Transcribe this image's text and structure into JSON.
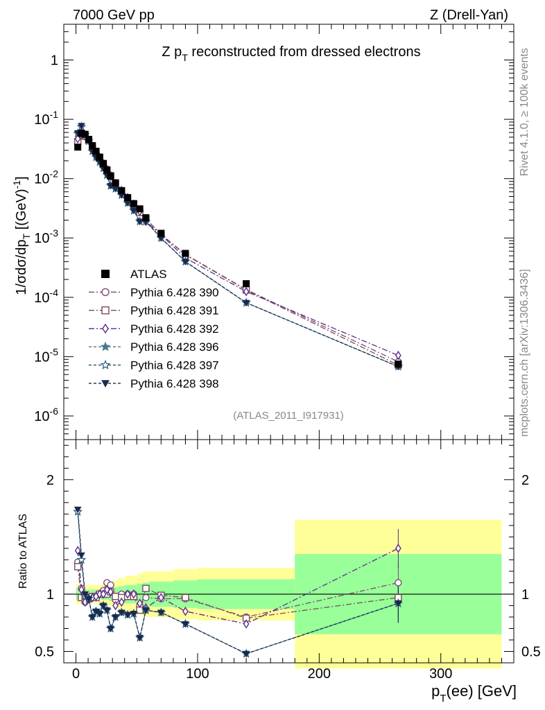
{
  "header": {
    "left": "7000 GeV pp",
    "right": "Z (Drell-Yan)"
  },
  "side_labels": {
    "top": "Rivet 4.1.0, ≥ 100k events",
    "bottom": "mcplots.cern.ch [arXiv:1306.3436]"
  },
  "chart_data": [
    {
      "type": "line",
      "panel": "main",
      "title": "Z p_T reconstructed from dressed electrons",
      "analysis_tag": "(ATLAS_2011_I917931)",
      "xlabel": "p_T(ee) [GeV]",
      "ylabel": "1/σdσ/dp_T [(GeV)^-1]",
      "yscale": "log",
      "xlim": [
        -10,
        360
      ],
      "ylim": [
        4e-07,
        4
      ],
      "x_ticks": [
        0,
        100,
        200,
        300
      ],
      "y_ticks": [
        {
          "v": 1e-06,
          "base": "10",
          "exp": "-6"
        },
        {
          "v": 1e-05,
          "base": "10",
          "exp": "-5"
        },
        {
          "v": 0.0001,
          "base": "10",
          "exp": "-4"
        },
        {
          "v": 0.001,
          "base": "10",
          "exp": "-3"
        },
        {
          "v": 0.01,
          "base": "10",
          "exp": "-2"
        },
        {
          "v": 0.1,
          "base": "10",
          "exp": "-1"
        },
        {
          "v": 1,
          "base": "1",
          "exp": ""
        }
      ],
      "legend_position": "middle-left",
      "data_series": {
        "name": "ATLAS",
        "x": [
          1.5,
          4.5,
          7.5,
          10.5,
          13.5,
          16.5,
          19.5,
          22.5,
          25.5,
          28.5,
          32.5,
          37.5,
          42.5,
          47.5,
          52.5,
          57.5,
          70,
          90,
          140,
          265
        ],
        "y": [
          0.034,
          0.058,
          0.056,
          0.046,
          0.036,
          0.029,
          0.023,
          0.018,
          0.014,
          0.011,
          0.0085,
          0.0063,
          0.0048,
          0.0038,
          0.0031,
          0.0022,
          0.0012,
          0.00055,
          0.00017,
          7.5e-06
        ]
      },
      "series": [
        {
          "name": "Pythia 6.428 390",
          "color": "#7a4a7a",
          "marker": "circle-open",
          "dash": "8,3,2,3",
          "y": [
            0.044,
            0.058,
            0.052,
            0.044,
            0.035,
            0.028,
            0.023,
            0.018,
            0.0145,
            0.0115,
            0.0085,
            0.0063,
            0.0048,
            0.0038,
            0.0028,
            0.0021,
            0.00115,
            0.00053,
            0.000135,
            8.2e-06
          ]
        },
        {
          "name": "Pythia 6.428 391",
          "color": "#7a4a55",
          "marker": "square-open",
          "dash": "8,3,2,3",
          "y": [
            0.042,
            0.056,
            0.052,
            0.044,
            0.035,
            0.028,
            0.023,
            0.018,
            0.014,
            0.0112,
            0.0083,
            0.0061,
            0.0047,
            0.0037,
            0.0027,
            0.0021,
            0.00115,
            0.00052,
            0.000133,
            7.2e-06
          ]
        },
        {
          "name": "Pythia 6.428 392",
          "color": "#5a2a8a",
          "marker": "diamond-open",
          "dash": "8,3,2,3",
          "y": [
            0.047,
            0.06,
            0.052,
            0.044,
            0.035,
            0.028,
            0.023,
            0.018,
            0.0143,
            0.0109,
            0.0083,
            0.0063,
            0.0048,
            0.0037,
            0.0028,
            0.0019,
            0.00113,
            0.00046,
            0.000125,
            1.05e-05
          ]
        },
        {
          "name": "Pythia 6.428 396",
          "color": "#4a7a8a",
          "marker": "star-filled",
          "dash": "4,3",
          "y": [
            0.058,
            0.075,
            0.055,
            0.043,
            0.029,
            0.023,
            0.019,
            0.015,
            0.0115,
            0.0076,
            0.0068,
            0.0053,
            0.0039,
            0.0029,
            0.0019,
            0.0019,
            0.001,
            0.0004,
            8.1e-05,
            6.8e-06
          ]
        },
        {
          "name": "Pythia 6.428 397",
          "color": "#2a5a7a",
          "marker": "star-open",
          "dash": "4,3",
          "y": [
            0.058,
            0.075,
            0.055,
            0.043,
            0.029,
            0.023,
            0.019,
            0.015,
            0.0115,
            0.0076,
            0.0068,
            0.0053,
            0.0039,
            0.0029,
            0.0019,
            0.0019,
            0.001,
            0.0004,
            8.1e-05,
            6.8e-06
          ]
        },
        {
          "name": "Pythia 6.428 398",
          "color": "#1a2a4a",
          "marker": "triangle-down-filled",
          "dash": "4,3",
          "y": [
            0.059,
            0.078,
            0.056,
            0.044,
            0.029,
            0.023,
            0.019,
            0.015,
            0.0115,
            0.0076,
            0.0068,
            0.0053,
            0.0039,
            0.0029,
            0.0019,
            0.0019,
            0.001,
            0.0004,
            8.1e-05,
            6.8e-06
          ]
        }
      ]
    },
    {
      "type": "line",
      "panel": "ratio",
      "ylabel": "Ratio to ATLAS",
      "ylim": [
        0.4,
        2.35
      ],
      "y_ticks": [
        0.5,
        1,
        2
      ],
      "y_tick_labels": [
        "0.5",
        "1",
        "2"
      ],
      "x_ticks": [
        0,
        100,
        200,
        300
      ],
      "x_tick_labels": [
        "0",
        "100",
        "200",
        "300"
      ],
      "xlabel": "p_T(ee) [GeV]",
      "bands": {
        "x_edges": [
          0,
          3,
          6,
          9,
          12,
          15,
          18,
          21,
          24,
          27,
          30,
          35,
          40,
          45,
          50,
          55,
          60,
          80,
          100,
          180,
          350
        ],
        "yellow": [
          0.09,
          0.08,
          0.08,
          0.08,
          0.08,
          0.08,
          0.08,
          0.09,
          0.1,
          0.1,
          0.12,
          0.14,
          0.16,
          0.16,
          0.18,
          0.2,
          0.2,
          0.22,
          0.23,
          0.65
        ],
        "green": [
          0.05,
          0.04,
          0.04,
          0.04,
          0.04,
          0.04,
          0.04,
          0.05,
          0.05,
          0.06,
          0.06,
          0.07,
          0.08,
          0.08,
          0.09,
          0.1,
          0.11,
          0.12,
          0.13,
          0.35
        ]
      },
      "series": [
        {
          "name": "Pythia 6.428 390",
          "y": [
            1.28,
            1.05,
            0.93,
            0.96,
            0.97,
            0.97,
            1.0,
            1.03,
            1.1,
            1.08,
            0.95,
            1.0,
            1.0,
            1.0,
            0.9,
            0.97,
            0.96,
            0.96,
            0.8,
            1.1
          ]
        },
        {
          "name": "Pythia 6.428 391",
          "y": [
            1.24,
            0.97,
            0.95,
            0.96,
            0.98,
            0.97,
            1.0,
            1.0,
            1.0,
            1.02,
            0.98,
            0.97,
            0.98,
            0.98,
            0.86,
            1.05,
            0.99,
            0.97,
            0.79,
            0.97
          ]
        },
        {
          "name": "Pythia 6.428 392",
          "y": [
            1.38,
            1.04,
            0.93,
            0.96,
            0.97,
            0.98,
            1.0,
            1.0,
            1.04,
            1.02,
            0.9,
            0.93,
            1.0,
            1.0,
            0.92,
            0.88,
            0.97,
            0.85,
            0.74,
            1.4
          ]
        },
        {
          "name": "Pythia 6.428 396",
          "y": [
            1.72,
            1.3,
            0.98,
            0.96,
            0.8,
            0.85,
            0.83,
            0.9,
            0.86,
            0.7,
            0.8,
            0.84,
            0.82,
            0.83,
            0.62,
            0.86,
            0.84,
            0.74,
            0.48,
            0.92
          ]
        },
        {
          "name": "Pythia 6.428 397",
          "y": [
            1.72,
            1.3,
            0.98,
            0.96,
            0.8,
            0.85,
            0.83,
            0.9,
            0.86,
            0.7,
            0.8,
            0.84,
            0.82,
            0.83,
            0.62,
            0.86,
            0.84,
            0.74,
            0.48,
            0.92
          ]
        },
        {
          "name": "Pythia 6.428 398",
          "y": [
            1.74,
            1.34,
            1.0,
            0.96,
            0.8,
            0.85,
            0.83,
            0.9,
            0.86,
            0.7,
            0.8,
            0.84,
            0.82,
            0.83,
            0.62,
            0.86,
            0.84,
            0.74,
            0.48,
            0.92
          ]
        }
      ]
    }
  ]
}
